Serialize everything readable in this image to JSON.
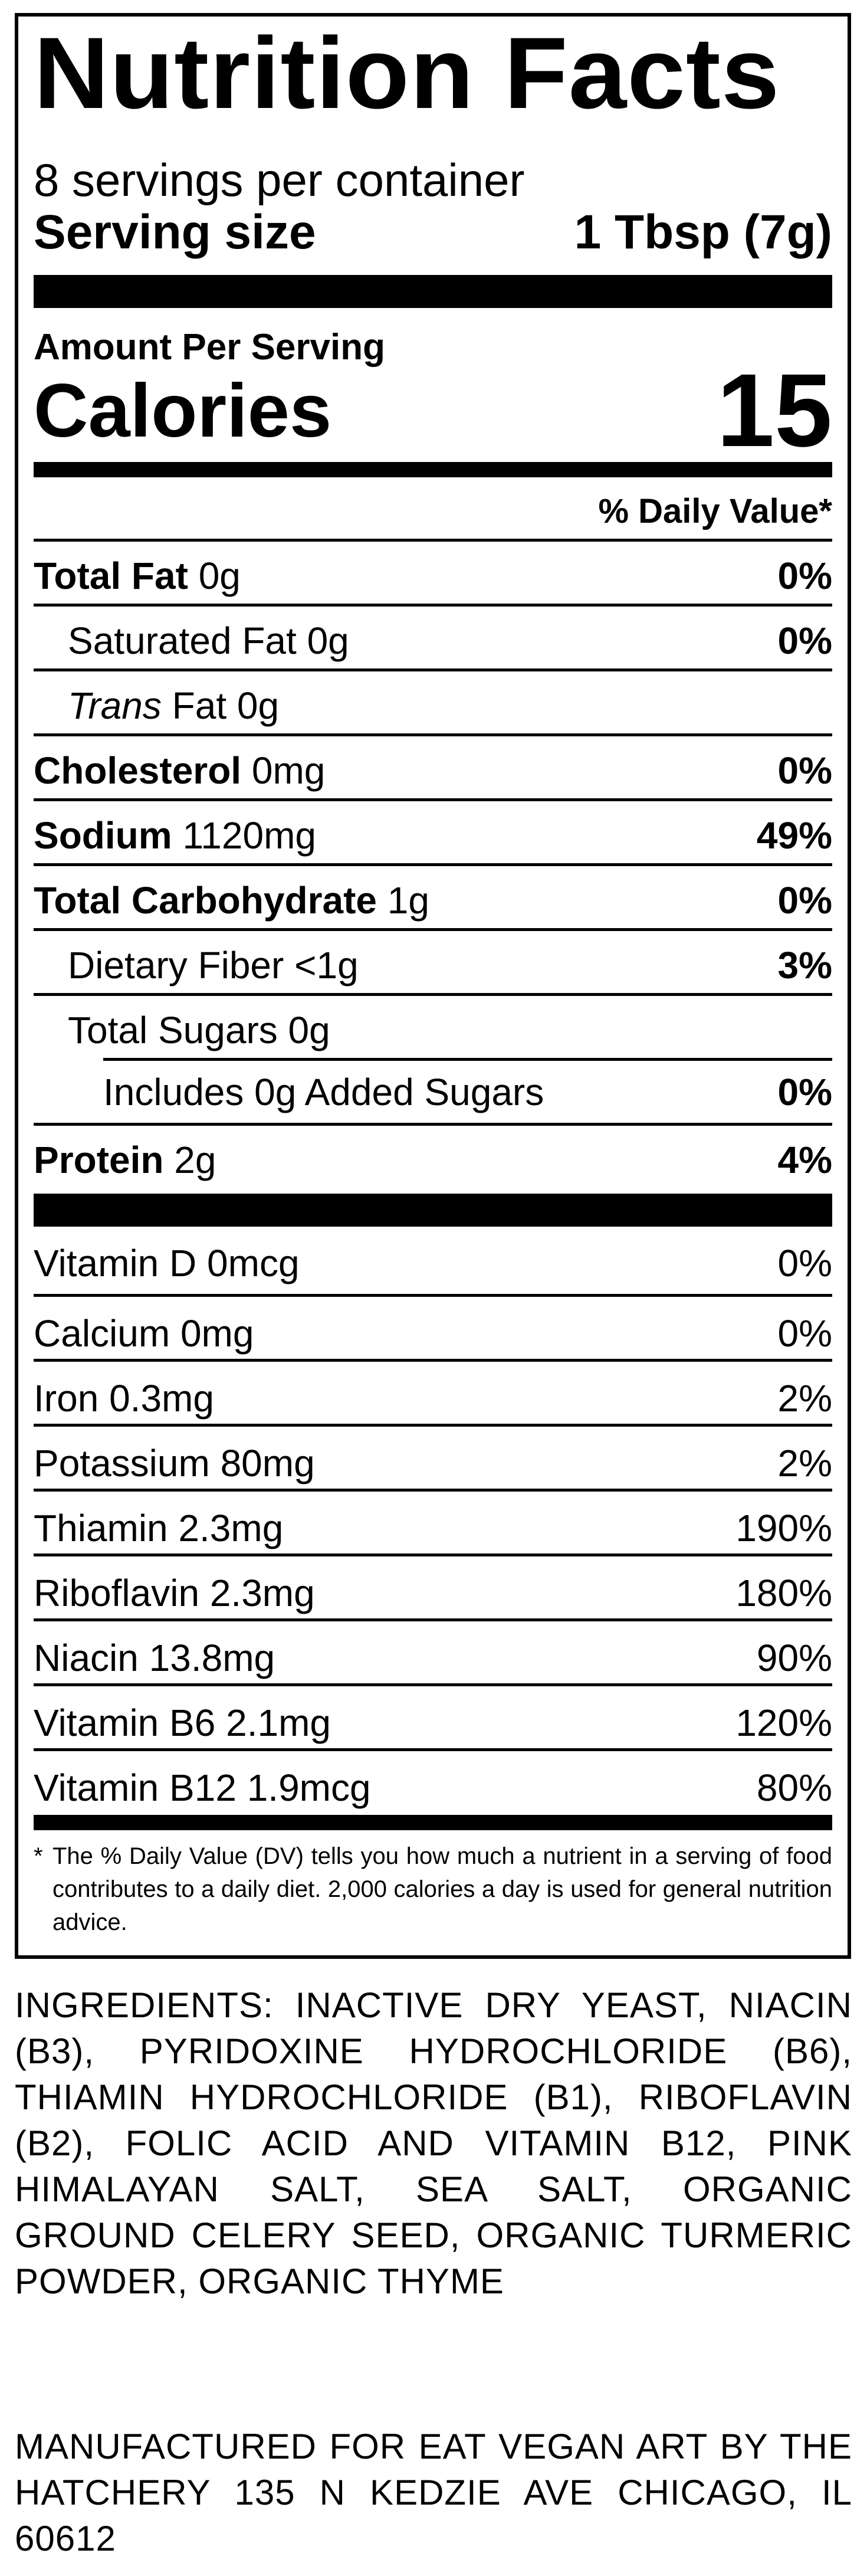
{
  "title": "Nutrition Facts",
  "servings_per_container": "8 servings per container",
  "serving_size_label": "Serving size",
  "serving_size_value": "1 Tbsp (7g)",
  "amount_per_serving": "Amount Per Serving",
  "calories_label": "Calories",
  "calories_value": "15",
  "daily_value_header": "% Daily Value*",
  "nutrients": [
    {
      "name": "Total Fat",
      "amount": "0g",
      "dv": "0%"
    },
    {
      "name": "Saturated Fat",
      "amount": "0g",
      "dv": "0%"
    },
    {
      "name": "Trans",
      "amount": "Fat 0g",
      "dv": ""
    },
    {
      "name": "Cholesterol",
      "amount": "0mg",
      "dv": "0%"
    },
    {
      "name": "Sodium",
      "amount": "1120mg",
      "dv": "49%"
    },
    {
      "name": "Total Carbohydrate",
      "amount": "1g",
      "dv": "0%"
    },
    {
      "name": "Dietary Fiber",
      "amount": "<1g",
      "dv": "3%"
    },
    {
      "name": "Total Sugars",
      "amount": "0g",
      "dv": ""
    },
    {
      "name": "Includes 0g Added Sugars",
      "amount": "",
      "dv": "0%"
    },
    {
      "name": "Protein",
      "amount": "2g",
      "dv": "4%"
    }
  ],
  "vitamins": [
    {
      "label": "Vitamin D 0mcg",
      "dv": "0%"
    },
    {
      "label": "Calcium 0mg",
      "dv": "0%"
    },
    {
      "label": "Iron 0.3mg",
      "dv": "2%"
    },
    {
      "label": "Potassium 80mg",
      "dv": "2%"
    },
    {
      "label": "Thiamin 2.3mg",
      "dv": "190%"
    },
    {
      "label": "Riboflavin 2.3mg",
      "dv": "180%"
    },
    {
      "label": "Niacin 13.8mg",
      "dv": "90%"
    },
    {
      "label": "Vitamin B6 2.1mg",
      "dv": "120%"
    },
    {
      "label": "Vitamin B12 1.9mcg",
      "dv": "80%"
    }
  ],
  "footnote_star": "*",
  "footnote": "The % Daily Value (DV) tells you how much a nutrient in a serving of food contributes to a daily diet. 2,000 calories a day is used for general nutrition advice.",
  "ingredients": "INGREDIENTS: INACTIVE DRY YEAST, NIACIN (B3), PYRIDOXINE HYDROCHLORIDE (B6), THIAMIN HYDROCHLORIDE (B1), RIBOFLAVIN (B2), FOLIC ACID AND VITAMIN B12, PINK HIMALAYAN SALT, SEA SALT, ORGANIC GROUND CELERY SEED, ORGANIC TURMERIC POWDER, ORGANIC THYME",
  "manufactured": "MANUFACTURED FOR EAT VEGAN ART BY THE HATCHERY 135 N KEDZIE AVE CHICAGO, IL 60612"
}
